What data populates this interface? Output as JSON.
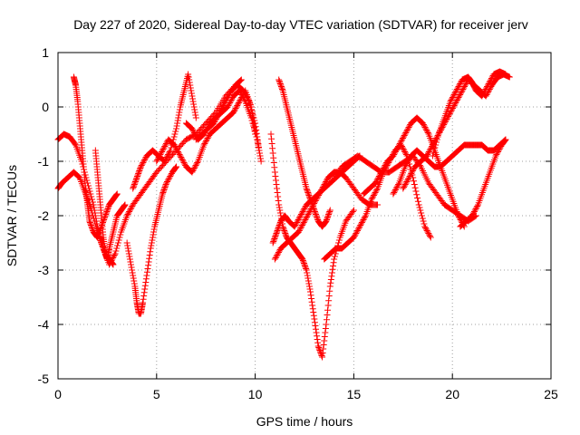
{
  "chart_data": {
    "type": "scatter",
    "title": "Day 227 of 2020, Sidereal Day-to-day VTEC variation (SDTVAR) for receiver jerv",
    "xlabel": "GPS time / hours",
    "ylabel": "SDTVAR / TECUs",
    "xlim": [
      0,
      25
    ],
    "ylim": [
      -5,
      1
    ],
    "xticks": [
      "0",
      "5",
      "10",
      "15",
      "20",
      "25"
    ],
    "yticks": [
      "-5",
      "-4",
      "-3",
      "-2",
      "-1",
      "0",
      "1"
    ],
    "grid": true,
    "marker": "+",
    "color": "#ff0000",
    "series": [
      {
        "x": [
          0.0,
          0.2,
          0.5,
          0.8,
          1.1,
          1.4,
          1.7,
          2.0,
          2.3,
          2.6,
          2.9,
          3.2,
          3.5,
          3.8,
          4.2,
          4.6,
          5.0,
          5.5,
          6.0,
          6.5,
          7.0,
          7.5,
          8.0,
          8.5,
          9.0,
          9.3
        ],
        "y": [
          -1.5,
          -1.4,
          -1.3,
          -1.2,
          -1.3,
          -1.6,
          -1.9,
          -2.3,
          -2.6,
          -2.9,
          -2.7,
          -2.3,
          -2.0,
          -1.8,
          -1.6,
          -1.4,
          -1.2,
          -1.0,
          -0.8,
          -0.6,
          -0.5,
          -0.3,
          -0.1,
          0.2,
          0.4,
          0.5
        ]
      },
      {
        "x": [
          0.0,
          0.3,
          0.6,
          0.9,
          1.2,
          1.5,
          1.8,
          2.0,
          2.2,
          2.4,
          2.6,
          2.8
        ],
        "y": [
          -0.6,
          -0.5,
          -0.55,
          -0.7,
          -1.0,
          -1.4,
          -1.8,
          -2.2,
          -2.5,
          -2.7,
          -2.8,
          -2.9
        ]
      },
      {
        "x": [
          0.8,
          0.9,
          1.0,
          1.1,
          1.2,
          1.3,
          1.4,
          1.5,
          1.6,
          1.8,
          2.0,
          2.2,
          2.4,
          2.6,
          2.8,
          3.0
        ],
        "y": [
          0.55,
          0.4,
          0.1,
          -0.3,
          -0.7,
          -1.1,
          -1.5,
          -1.8,
          -2.1,
          -2.3,
          -2.4,
          -2.2,
          -2.0,
          -1.8,
          -1.7,
          -1.6
        ]
      },
      {
        "x": [
          1.9,
          2.0,
          2.1,
          2.2,
          2.3,
          2.4,
          2.5,
          2.6,
          2.8,
          3.0,
          3.2,
          3.4
        ],
        "y": [
          -0.8,
          -1.2,
          -1.6,
          -2.0,
          -2.4,
          -2.7,
          -2.8,
          -2.6,
          -2.3,
          -2.0,
          -1.9,
          -1.8
        ]
      },
      {
        "x": [
          3.5,
          3.7,
          3.9,
          4.0,
          4.1,
          4.2,
          4.3,
          4.5,
          4.7,
          4.9,
          5.1,
          5.3,
          5.5,
          5.8,
          6.0
        ],
        "y": [
          -2.5,
          -2.9,
          -3.3,
          -3.6,
          -3.8,
          -3.8,
          -3.6,
          -3.1,
          -2.6,
          -2.2,
          -1.9,
          -1.6,
          -1.4,
          -1.2,
          -1.1
        ]
      },
      {
        "x": [
          3.8,
          4.0,
          4.2,
          4.5,
          4.8,
          5.1,
          5.4,
          5.7,
          6.0,
          6.2,
          6.4,
          6.6,
          6.8,
          7.0
        ],
        "y": [
          -1.5,
          -1.3,
          -1.1,
          -0.9,
          -0.8,
          -0.9,
          -1.0,
          -0.8,
          -0.4,
          0.0,
          0.3,
          0.6,
          0.2,
          -0.2
        ]
      },
      {
        "x": [
          5.0,
          5.3,
          5.6,
          5.9,
          6.2,
          6.5,
          6.8,
          7.1,
          7.4,
          7.7,
          8.0,
          8.3,
          8.6,
          8.9,
          9.2,
          9.5,
          9.8,
          10.0
        ],
        "y": [
          -1.0,
          -0.8,
          -0.6,
          -0.7,
          -0.9,
          -1.1,
          -1.2,
          -1.0,
          -0.7,
          -0.5,
          -0.4,
          -0.3,
          -0.2,
          -0.1,
          0.1,
          0.3,
          0.0,
          -0.5
        ]
      },
      {
        "x": [
          6.5,
          6.8,
          7.1,
          7.4,
          7.7,
          8.0,
          8.3,
          8.6,
          8.9,
          9.2,
          9.5,
          9.8,
          10.1,
          10.3
        ],
        "y": [
          -0.3,
          -0.4,
          -0.6,
          -0.5,
          -0.3,
          -0.2,
          -0.1,
          0.0,
          0.2,
          0.3,
          0.1,
          -0.2,
          -0.6,
          -1.0
        ]
      },
      {
        "x": [
          7.0,
          7.3,
          7.6,
          7.9,
          8.2,
          8.5,
          8.8,
          9.1,
          9.4,
          9.7,
          10.0,
          10.2
        ],
        "y": [
          -0.6,
          -0.5,
          -0.4,
          -0.3,
          -0.1,
          0.1,
          0.3,
          0.4,
          0.3,
          0.1,
          -0.3,
          -0.8
        ]
      },
      {
        "x": [
          10.8,
          11.0,
          11.2,
          11.4,
          11.6,
          11.8,
          12.0,
          12.2,
          12.4,
          12.6,
          12.8,
          13.0,
          13.2,
          13.4,
          13.6,
          13.8,
          14.0,
          14.3,
          14.6,
          15.0
        ],
        "y": [
          -0.5,
          -1.2,
          -1.8,
          -2.2,
          -2.4,
          -2.5,
          -2.6,
          -2.7,
          -2.8,
          -3.0,
          -3.4,
          -3.9,
          -4.4,
          -4.6,
          -4.0,
          -3.3,
          -2.8,
          -2.4,
          -2.1,
          -1.9
        ]
      },
      {
        "x": [
          10.9,
          11.1,
          11.3,
          11.5,
          11.7,
          12.0,
          12.3,
          12.6,
          12.9,
          13.2,
          13.5,
          13.8,
          14.1,
          14.4,
          14.7,
          15.0,
          15.3
        ],
        "y": [
          -2.5,
          -2.3,
          -2.1,
          -2.0,
          -2.1,
          -2.2,
          -2.0,
          -1.8,
          -1.7,
          -1.6,
          -1.5,
          -1.4,
          -1.3,
          -1.2,
          -1.1,
          -1.0,
          -0.9
        ]
      },
      {
        "x": [
          11.0,
          11.3,
          11.6,
          11.9,
          12.2,
          12.5,
          12.8,
          13.1,
          13.4,
          13.7,
          14.0,
          14.3,
          14.6,
          15.0,
          15.4,
          15.8,
          16.2
        ],
        "y": [
          -2.8,
          -2.6,
          -2.5,
          -2.4,
          -2.3,
          -2.1,
          -1.9,
          -1.7,
          -1.5,
          -1.3,
          -1.2,
          -1.2,
          -1.3,
          -1.5,
          -1.7,
          -1.8,
          -1.8
        ]
      },
      {
        "x": [
          11.2,
          11.4,
          11.6,
          11.8,
          12.0,
          12.2,
          12.4,
          12.6,
          12.8,
          13.0,
          13.2,
          13.4,
          13.6,
          13.8
        ],
        "y": [
          0.5,
          0.3,
          0.0,
          -0.3,
          -0.6,
          -0.9,
          -1.2,
          -1.5,
          -1.7,
          -1.9,
          -2.1,
          -2.2,
          -2.1,
          -1.9
        ]
      },
      {
        "x": [
          13.5,
          13.8,
          14.1,
          14.4,
          14.7,
          15.0,
          15.3,
          15.6,
          15.9,
          16.2,
          16.5,
          16.8,
          17.1,
          17.4,
          17.7,
          18.0,
          18.3,
          18.6,
          18.9
        ],
        "y": [
          -2.8,
          -2.7,
          -2.6,
          -2.6,
          -2.5,
          -2.4,
          -2.2,
          -2.0,
          -1.7,
          -1.5,
          -1.2,
          -1.0,
          -0.8,
          -0.7,
          -0.9,
          -1.3,
          -1.8,
          -2.2,
          -2.4
        ]
      },
      {
        "x": [
          14.0,
          14.4,
          14.8,
          15.2,
          15.6,
          16.0,
          16.4,
          16.8,
          17.2,
          17.6,
          18.0,
          18.4,
          18.8,
          19.2,
          19.6,
          20.0,
          20.4,
          20.8,
          21.2
        ],
        "y": [
          -1.3,
          -1.1,
          -1.0,
          -0.9,
          -1.0,
          -1.1,
          -1.2,
          -1.2,
          -1.1,
          -1.0,
          -0.9,
          -1.1,
          -1.4,
          -1.6,
          -1.8,
          -1.9,
          -2.0,
          -2.1,
          -2.0
        ]
      },
      {
        "x": [
          15.5,
          15.8,
          16.1,
          16.4,
          16.7,
          17.0,
          17.3,
          17.6,
          17.9,
          18.2,
          18.5,
          18.8,
          19.1,
          19.4,
          19.7,
          20.0,
          20.3,
          20.6
        ],
        "y": [
          -1.6,
          -1.5,
          -1.4,
          -1.2,
          -1.0,
          -0.9,
          -0.7,
          -0.5,
          -0.3,
          -0.2,
          -0.3,
          -0.5,
          -0.8,
          -1.1,
          -1.4,
          -1.7,
          -2.0,
          -2.2
        ]
      },
      {
        "x": [
          17.0,
          17.3,
          17.6,
          17.9,
          18.2,
          18.5,
          18.8,
          19.1,
          19.4,
          19.7,
          20.0,
          20.3,
          20.6,
          20.9,
          21.2,
          21.5,
          21.8,
          22.1,
          22.4,
          22.7
        ],
        "y": [
          -1.6,
          -1.4,
          -1.1,
          -0.9,
          -0.8,
          -0.9,
          -1.0,
          -1.1,
          -1.1,
          -1.0,
          -0.9,
          -0.8,
          -0.7,
          -0.7,
          -0.7,
          -0.7,
          -0.8,
          -0.8,
          -0.7,
          -0.6
        ]
      },
      {
        "x": [
          17.5,
          17.8,
          18.1,
          18.4,
          18.7,
          19.0,
          19.3,
          19.6,
          19.9,
          20.2,
          20.5,
          20.8,
          21.1,
          21.4,
          21.7,
          22.0,
          22.3,
          22.6,
          22.9
        ],
        "y": [
          -1.5,
          -1.3,
          -1.1,
          -1.0,
          -0.9,
          -0.7,
          -0.5,
          -0.3,
          -0.1,
          0.1,
          0.3,
          0.5,
          0.4,
          0.3,
          0.2,
          0.4,
          0.55,
          0.6,
          0.55
        ]
      },
      {
        "x": [
          19.0,
          19.3,
          19.6,
          19.9,
          20.2,
          20.5,
          20.8,
          21.0,
          21.2,
          21.5,
          21.8,
          22.1,
          22.4,
          22.7
        ],
        "y": [
          -0.9,
          -0.5,
          -0.2,
          0.1,
          0.3,
          0.5,
          0.55,
          0.45,
          0.3,
          0.2,
          0.4,
          0.6,
          0.65,
          0.6
        ]
      },
      {
        "x": [
          20.4,
          20.7,
          21.0,
          21.3,
          21.6,
          21.9,
          22.2,
          22.5,
          22.7
        ],
        "y": [
          -2.2,
          -2.1,
          -2.0,
          -1.8,
          -1.5,
          -1.2,
          -0.9,
          -0.7,
          -0.6
        ]
      }
    ]
  }
}
